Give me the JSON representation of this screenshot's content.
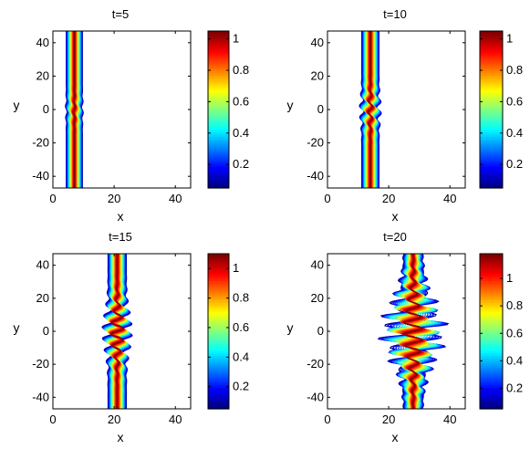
{
  "chart_data": [
    {
      "type": "contour",
      "title": "t=5",
      "xlabel": "x",
      "ylabel": "y",
      "xlim": [
        0,
        45
      ],
      "ylim": [
        -47,
        47
      ],
      "xticks": [
        0,
        20,
        40
      ],
      "yticks": [
        -40,
        -20,
        0,
        20,
        40
      ],
      "soliton_center_x": 7,
      "soliton_width": 1.5,
      "perturbation": {
        "center_y": 0,
        "extent_y": 6,
        "amplitude": 0.3,
        "spread_x": 0
      },
      "colorbar": {
        "min": 0.05,
        "max": 1.05,
        "ticks": [
          0.2,
          0.4,
          0.6,
          0.8,
          1
        ]
      }
    },
    {
      "type": "contour",
      "title": "t=10",
      "xlabel": "x",
      "ylabel": "y",
      "xlim": [
        0,
        45
      ],
      "ylim": [
        -47,
        47
      ],
      "xticks": [
        0,
        20,
        40
      ],
      "yticks": [
        -40,
        -20,
        0,
        20,
        40
      ],
      "soliton_center_x": 14,
      "soliton_width": 1.6,
      "perturbation": {
        "center_y": 0,
        "extent_y": 8,
        "amplitude": 0.8,
        "spread_x": 0
      },
      "colorbar": {
        "min": 0.05,
        "max": 1.05,
        "ticks": [
          0.2,
          0.4,
          0.6,
          0.8,
          1
        ]
      }
    },
    {
      "type": "contour",
      "title": "t=15",
      "xlabel": "x",
      "ylabel": "y",
      "xlim": [
        0,
        45
      ],
      "ylim": [
        -47,
        47
      ],
      "xticks": [
        0,
        20,
        40
      ],
      "yticks": [
        -40,
        -20,
        0,
        20,
        40
      ],
      "soliton_center_x": 21,
      "soliton_width": 1.7,
      "perturbation": {
        "center_y": 0,
        "extent_y": 12,
        "amplitude": 2.0,
        "spread_x": 0
      },
      "colorbar": {
        "min": 0.05,
        "max": 1.1,
        "ticks": [
          0.2,
          0.4,
          0.6,
          0.8,
          1
        ]
      }
    },
    {
      "type": "contour",
      "title": "t=20",
      "xlabel": "x",
      "ylabel": "y",
      "xlim": [
        0,
        45
      ],
      "ylim": [
        -47,
        47
      ],
      "xticks": [
        0,
        20,
        40
      ],
      "yticks": [
        -40,
        -20,
        0,
        20,
        40
      ],
      "soliton_center_x": 28,
      "soliton_width": 1.7,
      "perturbation": {
        "center_y": 0,
        "extent_y": 18,
        "amplitude": 3.0,
        "spread_x": 6
      },
      "colorbar": {
        "min": 0.05,
        "max": 1.18,
        "ticks": [
          0.2,
          0.4,
          0.6,
          0.8,
          1
        ]
      }
    }
  ]
}
